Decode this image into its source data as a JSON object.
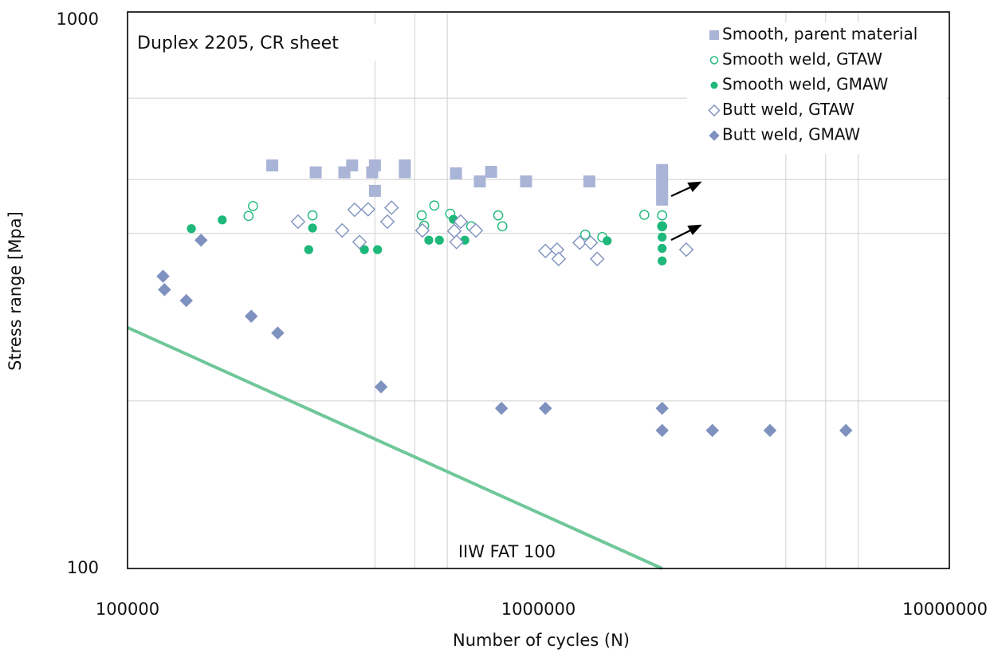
{
  "chart_data": {
    "type": "scatter",
    "title": "Duplex 2205, CR sheet",
    "x_label": "Number of cycles (N)",
    "y_label": "Stress range [Mpa]",
    "xscale": "log",
    "yscale": "log",
    "xlim": [
      100000,
      10000000
    ],
    "ylim": [
      100,
      1000
    ],
    "xticks": [
      100000,
      1000000,
      10000000
    ],
    "yticks": [
      100,
      1000
    ],
    "xgrid": [
      400000,
      500000,
      600000,
      4000000,
      5000000,
      6000000
    ],
    "ygrid": [
      200,
      400,
      500,
      700
    ],
    "legend": "top-right",
    "series": [
      {
        "name": "Smooth, parent material",
        "color": "#a9b4d6",
        "marker": "square",
        "x": [
          225000,
          287000,
          337000,
          352000,
          394000,
          400000,
          400000,
          473000,
          473000,
          630000,
          720000,
          767000,
          933000,
          1330000,
          2000000,
          2000000,
          2000000,
          2000000,
          2000000
        ],
        "values": [
          530,
          515,
          515,
          530,
          515,
          530,
          477,
          515,
          530,
          513,
          496,
          516,
          496,
          496,
          520,
          505,
          490,
          475,
          460
        ]
      },
      {
        "name": "Smooth weld, GTAW",
        "color": "#1db87a",
        "marker": "circle-open",
        "x": [
          197000,
          202000,
          282000,
          520000,
          527000,
          558000,
          610000,
          686000,
          798000,
          817000,
          1300000,
          1430000,
          1810000,
          2000000,
          2000000
        ],
        "values": [
          430,
          448,
          431,
          431,
          413,
          449,
          434,
          412,
          431,
          412,
          398,
          394,
          432,
          431,
          412
        ]
      },
      {
        "name": "Smooth weld, GMAW",
        "color": "#1db87a",
        "marker": "circle",
        "x": [
          143000,
          170000,
          276000,
          282000,
          377000,
          406000,
          541000,
          574000,
          621000,
          662000,
          1470000,
          2000000,
          2000000,
          2000000,
          2000000
        ],
        "values": [
          408,
          423,
          374,
          409,
          374,
          374,
          389,
          389,
          424,
          389,
          388,
          412,
          394,
          376,
          357
        ]
      },
      {
        "name": "Butt weld, GTAW",
        "color": "#7f91bf",
        "marker": "diamond-open",
        "x": [
          260000,
          333000,
          357000,
          367000,
          385000,
          429000,
          439000,
          522000,
          624000,
          632000,
          647000,
          704000,
          1040000,
          1110000,
          1120000,
          1260000,
          1340000,
          1390000,
          2290000
        ],
        "values": [
          420,
          405,
          441,
          386,
          442,
          420,
          445,
          405,
          404,
          386,
          420,
          405,
          372,
          374,
          360,
          385,
          385,
          360,
          374
        ]
      },
      {
        "name": "Butt weld, GMAW",
        "color": "#7f91bf",
        "marker": "diamond",
        "x": [
          151000,
          122000,
          123000,
          139000,
          200000,
          232000,
          414000,
          813000,
          1040000,
          2000000,
          2000000,
          2650000,
          3660000,
          5600000
        ],
        "values": [
          389,
          335,
          317,
          303,
          284,
          265,
          212,
          194,
          194,
          194,
          177,
          177,
          177,
          177
        ]
      }
    ],
    "reference_line": {
      "label": "IIW FAT 100",
      "color": "#6fc79a",
      "x": [
        100000,
        2000000
      ],
      "values": [
        271,
        100
      ]
    }
  }
}
